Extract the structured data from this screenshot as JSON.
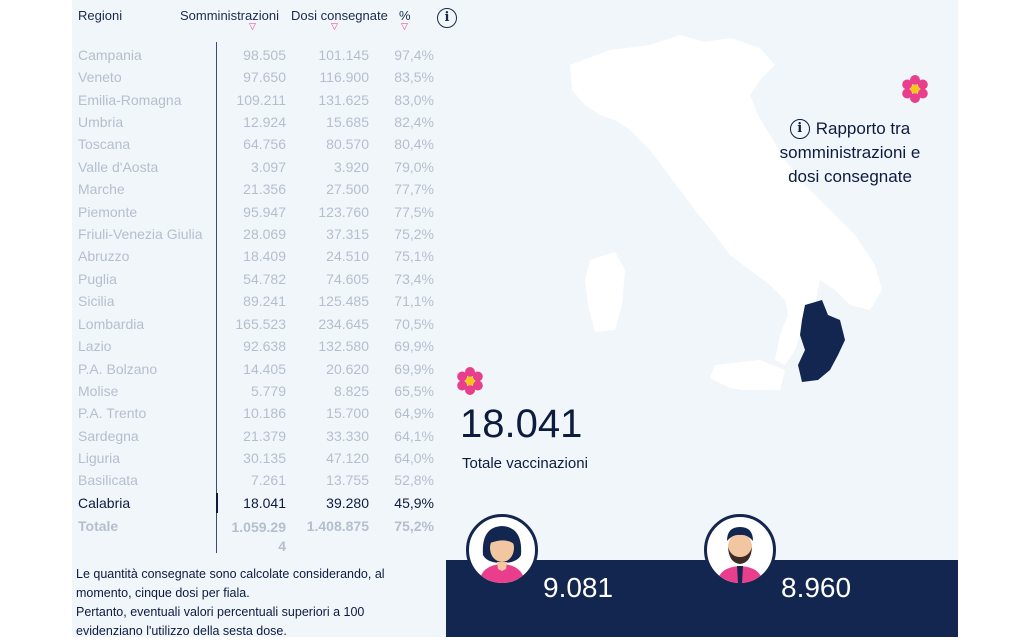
{
  "table": {
    "headers": {
      "region": "Regioni",
      "somministrazioni": "Somministrazioni",
      "dosi": "Dosi consegnate",
      "pct": "%"
    },
    "sort_arrow": "▽",
    "rows": [
      {
        "region": "Campania",
        "somministrazioni": "98.505",
        "dosi": "101.145",
        "pct": "97,4%"
      },
      {
        "region": "Veneto",
        "somministrazioni": "97.650",
        "dosi": "116.900",
        "pct": "83,5%"
      },
      {
        "region": "Emilia-Romagna",
        "somministrazioni": "109.211",
        "dosi": "131.625",
        "pct": "83,0%"
      },
      {
        "region": "Umbria",
        "somministrazioni": "12.924",
        "dosi": "15.685",
        "pct": "82,4%"
      },
      {
        "region": "Toscana",
        "somministrazioni": "64.756",
        "dosi": "80.570",
        "pct": "80,4%"
      },
      {
        "region": "Valle d'Aosta",
        "somministrazioni": "3.097",
        "dosi": "3.920",
        "pct": "79,0%"
      },
      {
        "region": "Marche",
        "somministrazioni": "21.356",
        "dosi": "27.500",
        "pct": "77,7%"
      },
      {
        "region": "Piemonte",
        "somministrazioni": "95.947",
        "dosi": "123.760",
        "pct": "77,5%"
      },
      {
        "region": "Friuli-Venezia Giulia",
        "somministrazioni": "28.069",
        "dosi": "37.315",
        "pct": "75,2%"
      },
      {
        "region": "Abruzzo",
        "somministrazioni": "18.409",
        "dosi": "24.510",
        "pct": "75,1%"
      },
      {
        "region": "Puglia",
        "somministrazioni": "54.782",
        "dosi": "74.605",
        "pct": "73,4%"
      },
      {
        "region": "Sicilia",
        "somministrazioni": "89.241",
        "dosi": "125.485",
        "pct": "71,1%"
      },
      {
        "region": "Lombardia",
        "somministrazioni": "165.523",
        "dosi": "234.645",
        "pct": "70,5%"
      },
      {
        "region": "Lazio",
        "somministrazioni": "92.638",
        "dosi": "132.580",
        "pct": "69,9%"
      },
      {
        "region": "P.A. Bolzano",
        "somministrazioni": "14.405",
        "dosi": "20.620",
        "pct": "69,9%"
      },
      {
        "region": "Molise",
        "somministrazioni": "5.779",
        "dosi": "8.825",
        "pct": "65,5%"
      },
      {
        "region": "P.A. Trento",
        "somministrazioni": "10.186",
        "dosi": "15.700",
        "pct": "64,9%"
      },
      {
        "region": "Sardegna",
        "somministrazioni": "21.379",
        "dosi": "33.330",
        "pct": "64,1%"
      },
      {
        "region": "Liguria",
        "somministrazioni": "30.135",
        "dosi": "47.120",
        "pct": "64,0%"
      },
      {
        "region": "Basilicata",
        "somministrazioni": "7.261",
        "dosi": "13.755",
        "pct": "52,8%"
      },
      {
        "region": "Calabria",
        "somministrazioni": "18.041",
        "dosi": "39.280",
        "pct": "45,9%"
      }
    ],
    "highlighted_region": "Calabria",
    "total": {
      "region": "Totale",
      "somministrazioni_line1": "1.059.29",
      "somministrazioni_line2": "4",
      "dosi": "1.408.875",
      "pct": "75,2%"
    }
  },
  "info_icon": "i",
  "note": {
    "line1": "Le quantità consegnate sono calcolate considerando, al momento, cinque dosi per fiala.",
    "line2": "Pertanto, eventuali valori percentuali superiori a 100 evidenziano l'utilizzo della sesta dose."
  },
  "ratio_label": {
    "icon": "i",
    "line1": "Rapporto tra",
    "line2": "somministrazioni e",
    "line3": "dosi consegnate"
  },
  "summary": {
    "total_value": "18.041",
    "total_label": "Totale vaccinazioni",
    "female_value": "9.081",
    "male_value": "8.960"
  },
  "colors": {
    "panel_bg": "#f1f6fb",
    "navy": "#13264f",
    "highlight": "#0d1b3e",
    "accent_pink": "#e83e8c",
    "muted_text": "#b5bfcc"
  },
  "icons": [
    "info-icon",
    "sort-arrow-icon",
    "flower-icon",
    "italy-map",
    "woman-avatar-icon",
    "man-avatar-icon"
  ]
}
